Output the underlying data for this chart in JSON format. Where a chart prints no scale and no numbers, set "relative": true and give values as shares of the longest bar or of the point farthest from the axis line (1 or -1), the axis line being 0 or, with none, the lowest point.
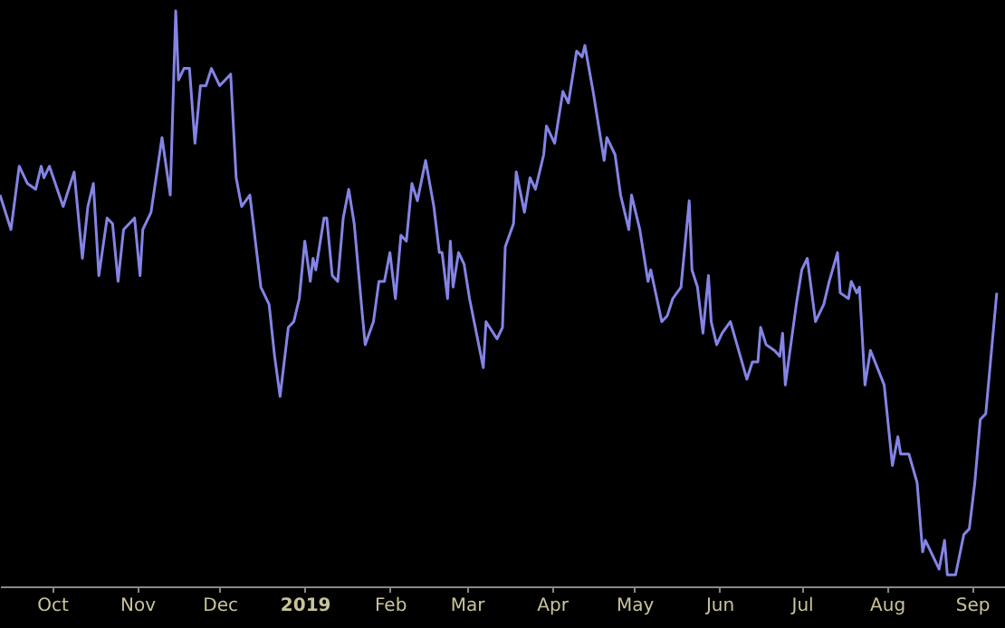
{
  "chart_data": {
    "type": "line",
    "relative": true,
    "xlim": [
      "2018-09-12",
      "2019-09-13"
    ],
    "xticks": [
      {
        "value": "2018-10-01",
        "label": "Oct"
      },
      {
        "value": "2018-11-01",
        "label": "Nov"
      },
      {
        "value": "2018-12-01",
        "label": "Dec"
      },
      {
        "value": "2019-01-01",
        "label": "2019"
      },
      {
        "value": "2019-02-01",
        "label": "Feb"
      },
      {
        "value": "2019-03-01",
        "label": "Mar"
      },
      {
        "value": "2019-04-01",
        "label": "Apr"
      },
      {
        "value": "2019-05-01",
        "label": "May"
      },
      {
        "value": "2019-06-01",
        "label": "Jun"
      },
      {
        "value": "2019-07-01",
        "label": "Jul"
      },
      {
        "value": "2019-08-01",
        "label": "Aug"
      },
      {
        "value": "2019-09-01",
        "label": "Sep"
      }
    ],
    "x": [
      "2018-09-12",
      "2018-09-16",
      "2018-09-19",
      "2018-09-22",
      "2018-09-25",
      "2018-09-27",
      "2018-09-28",
      "2018-09-30",
      "2018-10-05",
      "2018-10-09",
      "2018-10-12",
      "2018-10-14",
      "2018-10-16",
      "2018-10-18",
      "2018-10-21",
      "2018-10-23",
      "2018-10-25",
      "2018-10-27",
      "2018-10-31",
      "2018-11-02",
      "2018-11-03",
      "2018-11-06",
      "2018-11-10",
      "2018-11-13",
      "2018-11-15",
      "2018-11-16",
      "2018-11-18",
      "2018-11-20",
      "2018-11-22",
      "2018-11-24",
      "2018-11-26",
      "2018-11-28",
      "2018-12-01",
      "2018-12-05",
      "2018-12-07",
      "2018-12-09",
      "2018-12-12",
      "2018-12-16",
      "2018-12-19",
      "2018-12-21",
      "2018-12-23",
      "2018-12-26",
      "2018-12-28",
      "2018-12-30",
      "2019-01-01",
      "2019-01-03",
      "2019-01-04",
      "2019-01-05",
      "2019-01-08",
      "2019-01-09",
      "2019-01-11",
      "2019-01-13",
      "2019-01-15",
      "2019-01-17",
      "2019-01-19",
      "2019-01-22",
      "2019-01-23",
      "2019-01-26",
      "2019-01-28",
      "2019-01-30",
      "2019-02-01",
      "2019-02-03",
      "2019-02-05",
      "2019-02-07",
      "2019-02-09",
      "2019-02-11",
      "2019-02-14",
      "2019-02-17",
      "2019-02-19",
      "2019-02-20",
      "2019-02-22",
      "2019-02-23",
      "2019-02-24",
      "2019-02-26",
      "2019-02-28",
      "2019-03-02",
      "2019-03-07",
      "2019-03-08",
      "2019-03-12",
      "2019-03-14",
      "2019-03-15",
      "2019-03-18",
      "2019-03-19",
      "2019-03-22",
      "2019-03-24",
      "2019-03-26",
      "2019-03-29",
      "2019-03-30",
      "2019-04-02",
      "2019-04-05",
      "2019-04-07",
      "2019-04-10",
      "2019-04-12",
      "2019-04-13",
      "2019-04-16",
      "2019-04-20",
      "2019-04-21",
      "2019-04-24",
      "2019-04-26",
      "2019-04-29",
      "2019-04-30",
      "2019-05-03",
      "2019-05-06",
      "2019-05-07",
      "2019-05-11",
      "2019-05-13",
      "2019-05-15",
      "2019-05-18",
      "2019-05-21",
      "2019-05-22",
      "2019-05-24",
      "2019-05-26",
      "2019-05-28",
      "2019-05-29",
      "2019-05-31",
      "2019-06-02",
      "2019-06-05",
      "2019-06-11",
      "2019-06-13",
      "2019-06-15",
      "2019-06-16",
      "2019-06-18",
      "2019-06-21",
      "2019-06-23",
      "2019-06-24",
      "2019-06-25",
      "2019-06-29",
      "2019-07-01",
      "2019-07-03",
      "2019-07-06",
      "2019-07-09",
      "2019-07-11",
      "2019-07-14",
      "2019-07-15",
      "2019-07-18",
      "2019-07-19",
      "2019-07-21",
      "2019-07-22",
      "2019-07-24",
      "2019-07-26",
      "2019-07-31",
      "2019-08-03",
      "2019-08-05",
      "2019-08-06",
      "2019-08-09",
      "2019-08-12",
      "2019-08-14",
      "2019-08-15",
      "2019-08-20",
      "2019-08-22",
      "2019-08-23",
      "2019-08-26",
      "2019-08-29",
      "2019-08-31",
      "2019-09-02",
      "2019-09-04",
      "2019-09-06",
      "2019-09-10"
    ],
    "series": [
      {
        "color": "#8484e6",
        "values": [
          0.68,
          0.62,
          0.73,
          0.7,
          0.69,
          0.73,
          0.71,
          0.73,
          0.66,
          0.72,
          0.57,
          0.66,
          0.7,
          0.54,
          0.64,
          0.63,
          0.53,
          0.62,
          0.64,
          0.54,
          0.62,
          0.65,
          0.78,
          0.68,
          1,
          0.88,
          0.9,
          0.9,
          0.77,
          0.87,
          0.87,
          0.9,
          0.87,
          0.89,
          0.71,
          0.66,
          0.68,
          0.52,
          0.49,
          0.4,
          0.33,
          0.45,
          0.46,
          0.5,
          0.6,
          0.53,
          0.57,
          0.55,
          0.64,
          0.64,
          0.54,
          0.53,
          0.64,
          0.69,
          0.63,
          0.47,
          0.42,
          0.46,
          0.53,
          0.53,
          0.58,
          0.5,
          0.61,
          0.6,
          0.7,
          0.67,
          0.74,
          0.66,
          0.58,
          0.58,
          0.5,
          0.6,
          0.52,
          0.58,
          0.56,
          0.5,
          0.38,
          0.46,
          0.43,
          0.45,
          0.59,
          0.63,
          0.72,
          0.65,
          0.71,
          0.69,
          0.75,
          0.8,
          0.77,
          0.86,
          0.84,
          0.93,
          0.92,
          0.94,
          0.86,
          0.74,
          0.78,
          0.75,
          0.68,
          0.62,
          0.68,
          0.62,
          0.53,
          0.55,
          0.46,
          0.47,
          0.5,
          0.52,
          0.67,
          0.55,
          0.52,
          0.44,
          0.54,
          0.46,
          0.42,
          0.44,
          0.46,
          0.36,
          0.39,
          0.39,
          0.45,
          0.42,
          0.41,
          0.4,
          0.44,
          0.35,
          0.49,
          0.55,
          0.57,
          0.46,
          0.49,
          0.53,
          0.58,
          0.51,
          0.5,
          0.53,
          0.51,
          0.52,
          0.35,
          0.41,
          0.35,
          0.21,
          0.26,
          0.23,
          0.23,
          0.18,
          0.06,
          0.08,
          0.03,
          0.08,
          0.02,
          0.02,
          0.09,
          0.1,
          0.18,
          0.29,
          0.3,
          0.51
        ]
      }
    ]
  }
}
